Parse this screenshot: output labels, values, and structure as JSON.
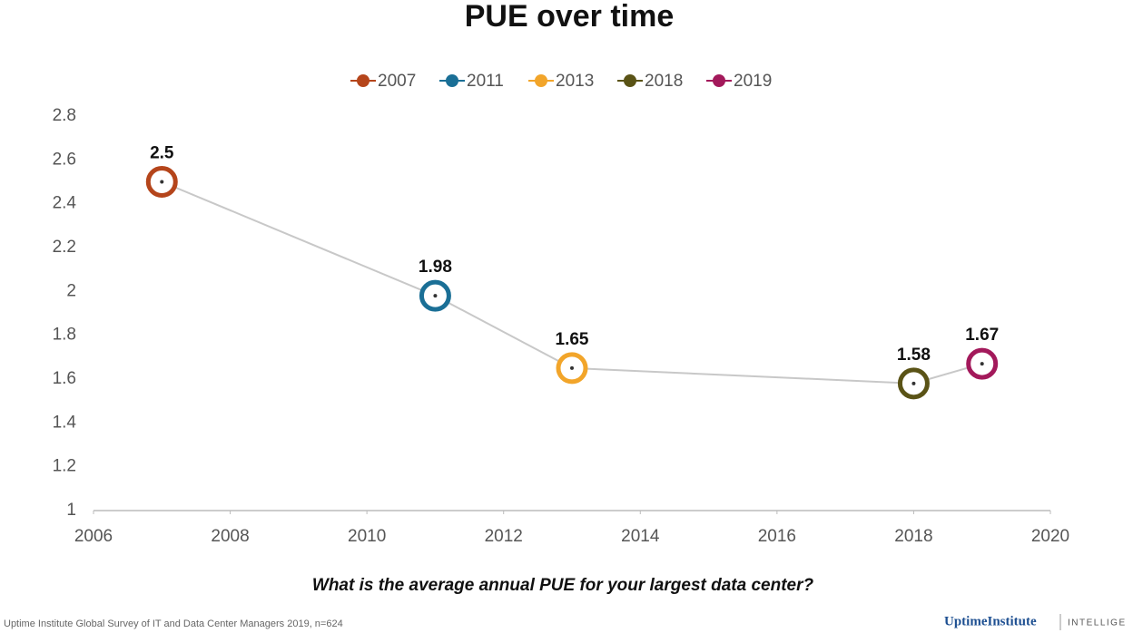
{
  "chart_data": {
    "type": "line",
    "title": "PUE over time",
    "series": [
      {
        "name": "2007",
        "color": "#b5451b",
        "x": [
          2007
        ],
        "values": [
          2.5
        ]
      },
      {
        "name": "2011",
        "color": "#1a6f96",
        "x": [
          2011
        ],
        "values": [
          1.98
        ]
      },
      {
        "name": "2013",
        "color": "#f2a52a",
        "x": [
          2013
        ],
        "values": [
          1.65
        ]
      },
      {
        "name": "2018",
        "color": "#5a5316",
        "x": [
          2018
        ],
        "values": [
          1.58
        ]
      },
      {
        "name": "2019",
        "color": "#a3195b",
        "x": [
          2019
        ],
        "values": [
          1.67
        ]
      }
    ],
    "line_color": "#c8c8c8",
    "xlim": [
      2006,
      2020
    ],
    "xticks": [
      2006,
      2008,
      2010,
      2012,
      2014,
      2016,
      2018,
      2020
    ],
    "ylim": [
      1,
      2.8
    ],
    "yticks": [
      1,
      1.2,
      1.4,
      1.6,
      1.8,
      2,
      2.2,
      2.4,
      2.6,
      2.8
    ],
    "grid": false,
    "legend": "top",
    "xlabel": "What is the average annual PUE for your largest data center?",
    "source": "Uptime Institute Global Survey of IT and Data Center Managers 2019, n=624",
    "logo": "UptimeInstitute",
    "logo_tag": "INTELLIGE"
  }
}
